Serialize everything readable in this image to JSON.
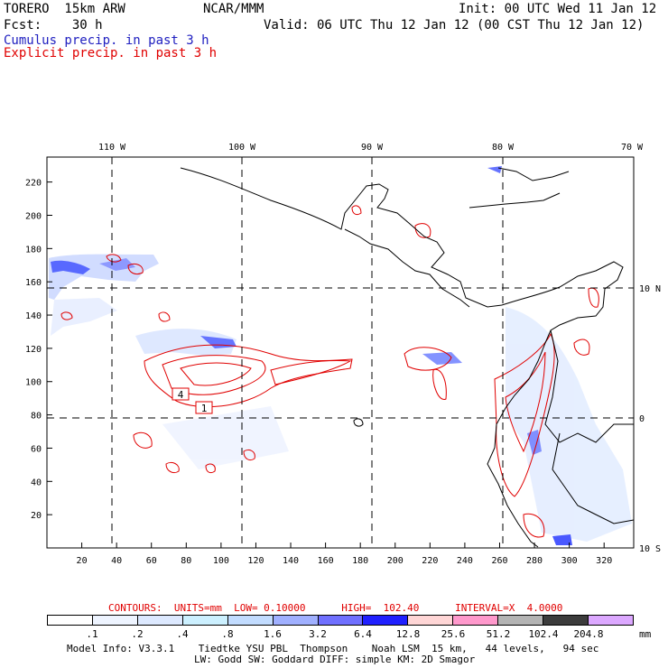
{
  "header": {
    "model": "TORERO  15km ARW",
    "org": "NCAR/MMM",
    "init": "Init: 00 UTC Wed 11 Jan 12",
    "fcst": "Fcst:    30 h",
    "valid": "Valid: 06 UTC Thu 12 Jan 12 (00 CST Thu 12 Jan 12)",
    "field1": "Cumulus precip. in past 3 h",
    "field2": "Explicit precip. in past 3 h"
  },
  "map": {
    "lon_labels": [
      "110 W",
      "100 W",
      "90 W",
      "80 W",
      "70 W"
    ],
    "lat_labels": [
      "10 N",
      "0",
      "10 S"
    ],
    "y_ticks": [
      "220",
      "200",
      "180",
      "160",
      "140",
      "120",
      "100",
      "80",
      "60",
      "40",
      "20"
    ],
    "x_ticks": [
      "20",
      "40",
      "60",
      "80",
      "100",
      "120",
      "140",
      "160",
      "180",
      "200",
      "220",
      "240",
      "260",
      "280",
      "300",
      "320"
    ],
    "contour_labels": [
      "4",
      "1"
    ],
    "colors": {
      "cumulus": "#3f5fff",
      "explicit": "#e00000",
      "coast": "#000000",
      "grid": "#000000"
    }
  },
  "contour_info": {
    "text": "CONTOURS:  UNITS=mm  LOW= 0.10000      HIGH=  102.40      INTERVAL=X  4.0000"
  },
  "legend": {
    "labels": [
      ".1",
      ".2",
      ".4",
      ".8",
      "1.6",
      "3.2",
      "6.4",
      "12.8",
      "25.6",
      "51.2",
      "102.4",
      "204.8"
    ],
    "units": "mm",
    "colors": [
      "#ffffff",
      "#eef4ff",
      "#dde9ff",
      "#ccf0ff",
      "#c2dcff",
      "#a0b0ff",
      "#7070ff",
      "#2020ff",
      "#ffd6d6",
      "#ff99cc",
      "#b4b4b4",
      "#3c3c3c",
      "#dca8ff"
    ]
  },
  "footer": {
    "line1": "Model Info: V3.3.1    Tiedtke YSU PBL  Thompson    Noah LSM  15 km,   44 levels,   94 sec",
    "line2": "LW: Godd SW: Goddard DIFF: simple KM: 2D Smagor"
  }
}
